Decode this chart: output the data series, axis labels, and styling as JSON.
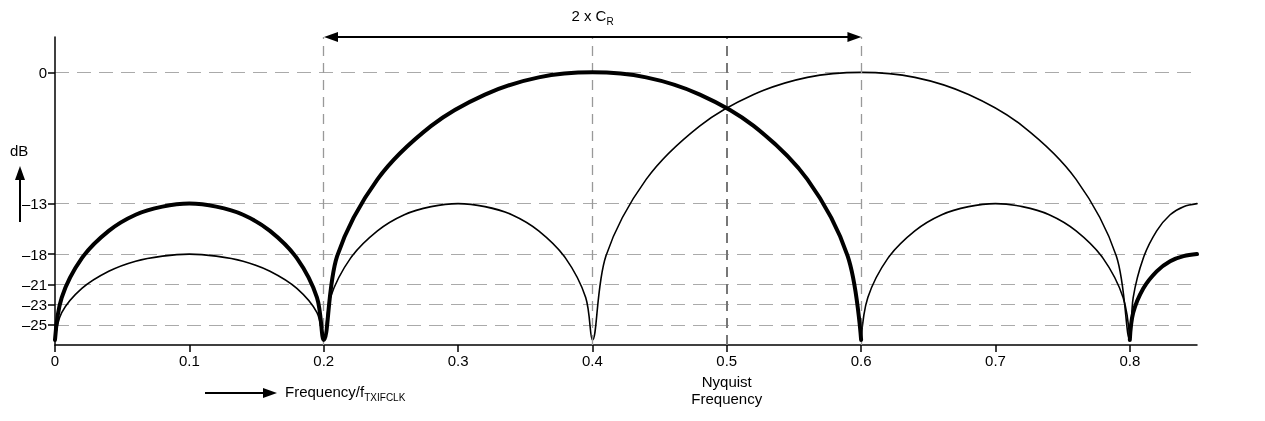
{
  "chart_data": {
    "type": "line",
    "xlabel": "Frequency/f$_{TXIFCLK}$",
    "ylabel": "dB",
    "xlim": [
      0,
      0.85
    ],
    "xticks": [
      0,
      0.1,
      0.2,
      0.3,
      0.4,
      0.5,
      0.6,
      0.7,
      0.8
    ],
    "ylim": [
      -27,
      3.5
    ],
    "yticks": [
      0,
      {
        "value": -13,
        "label": "–13"
      },
      {
        "value": -18,
        "label": "–18"
      },
      {
        "value": -21,
        "label": "–21"
      },
      {
        "value": -23,
        "label": "–23"
      },
      {
        "value": -25,
        "label": "–25"
      }
    ],
    "grid": "y",
    "marker": "none",
    "series": [
      {
        "color": "#000000",
        "x": [
          0,
          0.005,
          0.02,
          0.04,
          0.06,
          0.08,
          0.1,
          0.12,
          0.14,
          0.16,
          0.18,
          0.195,
          0.2,
          0.2,
          0.21,
          0.24,
          0.28,
          0.32,
          0.36,
          0.4,
          0.44,
          0.48,
          0.52,
          0.56,
          0.59,
          0.6,
          0.7,
          0.8,
          0.8025,
          0.81,
          0.82,
          0.83,
          0.84,
          0.85
        ],
        "values": [
          -26.5,
          -22.3,
          -18.4,
          -15.7,
          -14.1,
          -13.3,
          -13,
          -13.3,
          -14.1,
          -15.7,
          -18.4,
          -22.3,
          -26.5,
          -26.5,
          -18.2,
          -10.6,
          -5.3,
          -2.2,
          -0.5,
          0,
          -0.5,
          -2.2,
          -5.3,
          -10.6,
          -18.2,
          -26.5,
          null,
          -26.5,
          -23.8,
          -21.4,
          -19.7,
          -18.7,
          -18.2,
          -18
        ]
      },
      {
        "color": "#000000",
        "x": [
          0,
          0.005,
          0.02,
          0.04,
          0.06,
          0.08,
          0.1,
          0.12,
          0.14,
          0.16,
          0.18,
          0.195,
          0.2,
          0.205,
          0.22,
          0.24,
          0.26,
          0.28,
          0.3,
          0.32,
          0.34,
          0.36,
          0.38,
          0.395,
          0.4,
          0.41,
          0.44,
          0.48,
          0.52,
          0.56,
          0.6,
          0.64,
          0.68,
          0.72,
          0.76,
          0.79,
          0.8,
          0.8025,
          0.81,
          0.82,
          0.83,
          0.84,
          0.85
        ],
        "values": [
          -26.5,
          -23.8,
          -21.4,
          -19.7,
          -18.7,
          -18.2,
          -18,
          -18.2,
          -18.7,
          -19.7,
          -21.4,
          -23.8,
          -26.5,
          -22.3,
          -18.4,
          -15.7,
          -14.1,
          -13.3,
          -13,
          -13.3,
          -14.1,
          -15.7,
          -18.4,
          -22.3,
          -26.5,
          -18.2,
          -10.6,
          -5.3,
          -2.2,
          -0.5,
          0,
          -0.5,
          -2.2,
          -5.3,
          -10.6,
          -18.2,
          -26.5,
          -22.3,
          -18.4,
          -15.7,
          -14.1,
          -13.3,
          -13
        ]
      },
      {
        "color": "#000000",
        "x": [
          0.6,
          0.605,
          0.62,
          0.64,
          0.66,
          0.68,
          0.7,
          0.72,
          0.74,
          0.76,
          0.78,
          0.795,
          0.8
        ],
        "values": [
          -26.5,
          -22.3,
          -18.4,
          -15.7,
          -14.1,
          -13.3,
          -13,
          -13.3,
          -14.1,
          -15.7,
          -18.4,
          -22.3,
          -26.5
        ]
      }
    ],
    "ref_lines": [
      {
        "axis": "x",
        "value": 0.2,
        "color": "#999999",
        "line_style": "dashed"
      },
      {
        "axis": "x",
        "value": 0.4,
        "color": "#999999",
        "line_style": "dashed"
      },
      {
        "axis": "x",
        "value": 0.5,
        "color": "#777777",
        "line_style": "dashed",
        "label": "Nyquist Frequency"
      },
      {
        "axis": "x",
        "value": 0.6,
        "color": "#999999",
        "line_style": "dashed"
      }
    ],
    "annotations": [
      {
        "text": "2 x C$_{R}$",
        "x": 0.4,
        "y": 3.5
      }
    ]
  }
}
